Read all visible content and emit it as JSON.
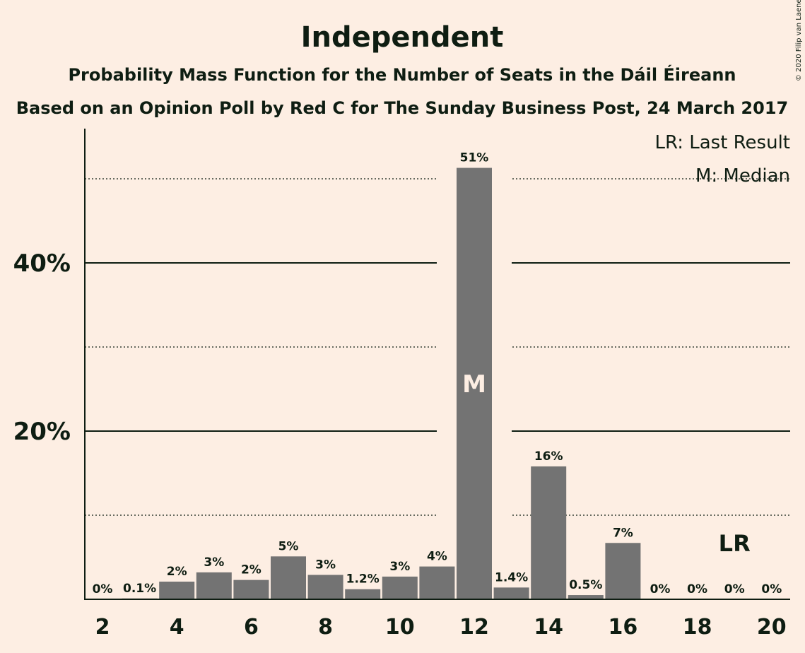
{
  "copyright": "© 2020 Filip van Laenen",
  "chart_data": {
    "type": "bar",
    "title": "Independent",
    "subtitle_1": "Probability Mass Function for the Number of Seats in the Dáil Éireann",
    "subtitle_2": "Based on an Opinion Poll by Red C for The Sunday Business Post, 24 March 2017",
    "x": [
      2,
      3,
      4,
      5,
      6,
      7,
      8,
      9,
      10,
      11,
      12,
      13,
      14,
      15,
      16,
      17,
      18,
      19,
      20
    ],
    "values": [
      0,
      0.1,
      2.1,
      3.2,
      2.3,
      5.1,
      2.9,
      1.2,
      2.7,
      3.9,
      51.3,
      1.4,
      15.8,
      0.5,
      6.7,
      0,
      0,
      0,
      0
    ],
    "value_labels": [
      "0%",
      "0.1%",
      "2%",
      "3%",
      "2%",
      "5%",
      "3%",
      "1.2%",
      "3%",
      "4%",
      "51%",
      "1.4%",
      "16%",
      "0.5%",
      "7%",
      "0%",
      "0%",
      "0%",
      "0%"
    ],
    "x_ticks": [
      2,
      4,
      6,
      8,
      10,
      12,
      14,
      16,
      18,
      20
    ],
    "y_ticks": [
      {
        "value": 20,
        "label": "20%"
      },
      {
        "value": 40,
        "label": "40%"
      }
    ],
    "minor_gridlines": [
      10,
      30,
      50
    ],
    "ylim": [
      0,
      56
    ],
    "median_seat": 12,
    "median_mark": "M",
    "last_result_seat": 19,
    "last_result_mark": "LR",
    "legend": [
      "LR: Last Result",
      "M: Median"
    ],
    "legend_position": "top-right",
    "bar_color": "#737373",
    "background_color": "#fdeee3",
    "text_color": "#0e1d12"
  }
}
